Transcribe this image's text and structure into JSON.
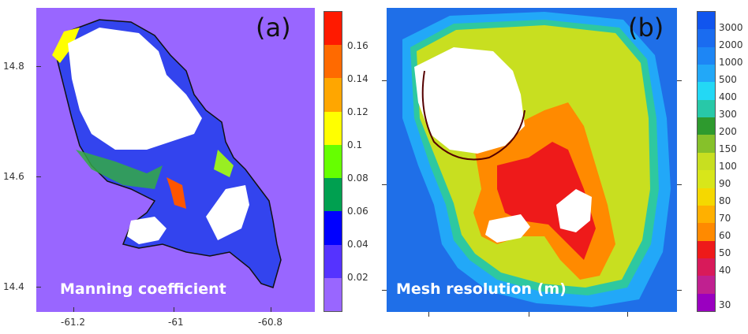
{
  "panel_a": {
    "letter": "(a)",
    "title": "Manning coefficient",
    "y_ticks": [
      "14.8",
      "14.6",
      "14.4"
    ],
    "x_ticks": [
      "-61.2",
      "-61",
      "-60.8"
    ],
    "colorbar": {
      "labels": [
        "0.16",
        "0.14",
        "0.12",
        "0.1",
        "0.08",
        "0.06",
        "0.04",
        "0.02"
      ],
      "colors": [
        "#ff1a00",
        "#ff6a00",
        "#ffa600",
        "#ffff00",
        "#66ff00",
        "#00a050",
        "#0000ff",
        "#5533ff",
        "#9966ff"
      ]
    }
  },
  "panel_b": {
    "letter": "(b)",
    "title": "Mesh resolution (m)",
    "colorbar": {
      "labels": [
        "3000",
        "2000",
        "1000",
        "500",
        "400",
        "300",
        "200",
        "150",
        "100",
        "90",
        "80",
        "70",
        "60",
        "50",
        "40",
        "30"
      ],
      "colors": [
        "#1155ee",
        "#1a6cf0",
        "#1d86f5",
        "#22a8f8",
        "#23d8f5",
        "#28c8a8",
        "#2e9a2e",
        "#86c12a",
        "#c8df20",
        "#d8e61a",
        "#f5d800",
        "#ffb000",
        "#ff8a00",
        "#ee1a1a",
        "#d81a5a",
        "#c02090",
        "#9a00c0"
      ]
    }
  }
}
